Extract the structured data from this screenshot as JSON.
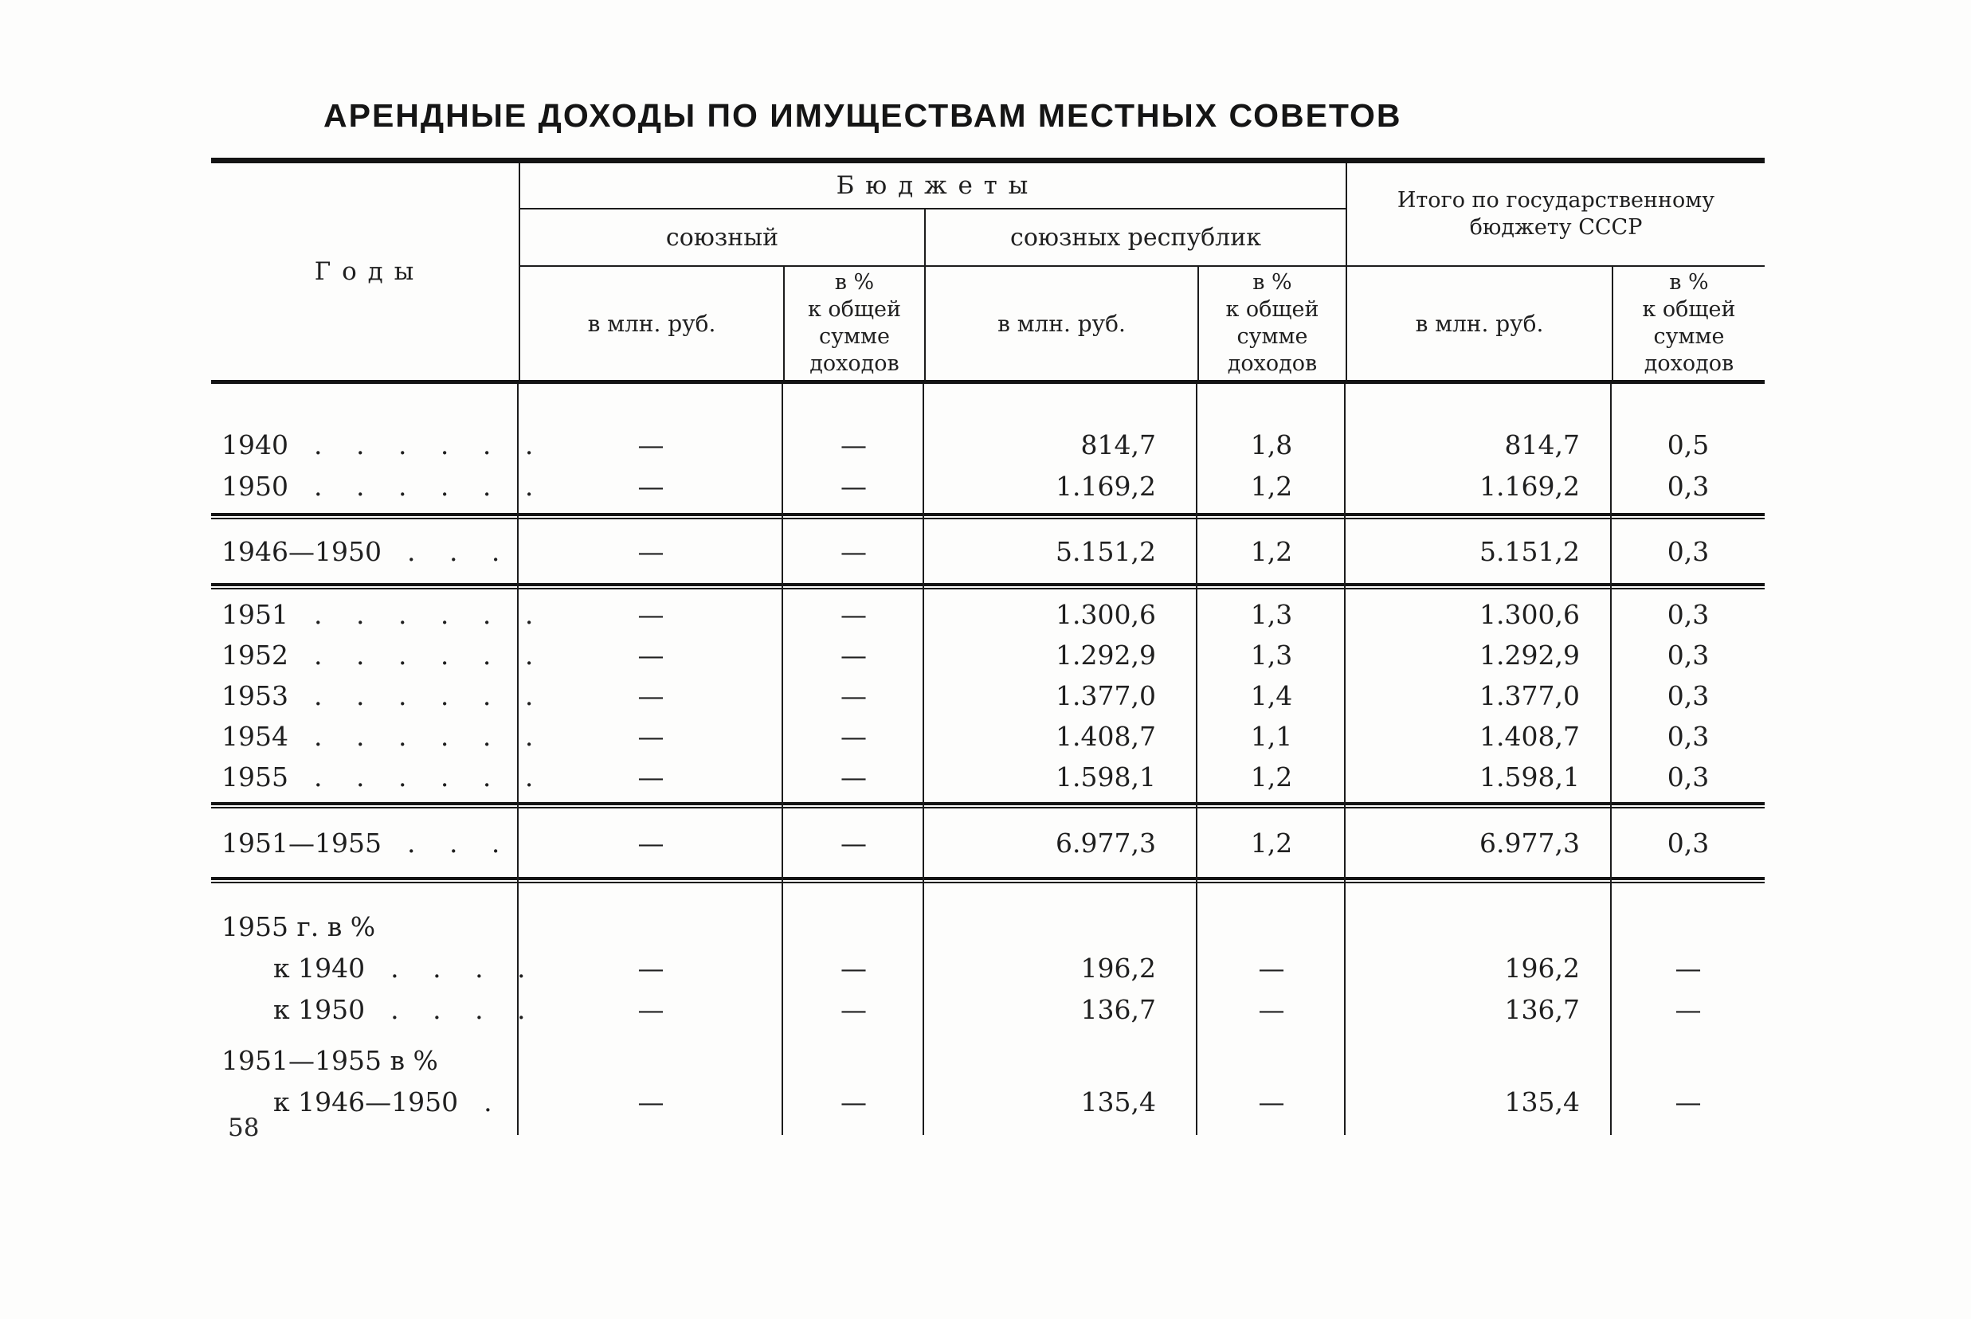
{
  "page": {
    "title": "АРЕНДНЫЕ ДОХОДЫ ПО ИМУЩЕСТВАМ МЕСТНЫХ СОВЕТОВ",
    "page_number": "58"
  },
  "table": {
    "header": {
      "years": "Г о д ы",
      "budgets": "Б ю д ж е т ы",
      "union": "союзный",
      "republics": "союзных республик",
      "total": "Итого по государственному\nбюджету СССР",
      "mln": "в млн. руб.",
      "pct": "в %\nк общей\nсумме\nдоходов"
    },
    "rows": [
      {
        "label": "1940",
        "dots": ". . . . . .",
        "cells": [
          "—",
          "—",
          "814,7",
          "1,8",
          "814,7",
          "0,5"
        ]
      },
      {
        "label": "1950",
        "dots": ". . . . . .",
        "cells": [
          "—",
          "—",
          "1.169,2",
          "1,2",
          "1.169,2",
          "0,3"
        ]
      },
      {
        "label": "1946—1950",
        "dots": ". . .",
        "cells": [
          "—",
          "—",
          "5.151,2",
          "1,2",
          "5.151,2",
          "0,3"
        ]
      },
      {
        "label": "1951",
        "dots": ". . . . . .",
        "cells": [
          "—",
          "—",
          "1.300,6",
          "1,3",
          "1.300,6",
          "0,3"
        ]
      },
      {
        "label": "1952",
        "dots": ". . . . . .",
        "cells": [
          "—",
          "—",
          "1.292,9",
          "1,3",
          "1.292,9",
          "0,3"
        ]
      },
      {
        "label": "1953",
        "dots": ". . . . . .",
        "cells": [
          "—",
          "—",
          "1.377,0",
          "1,4",
          "1.377,0",
          "0,3"
        ]
      },
      {
        "label": "1954",
        "dots": ". . . . . .",
        "cells": [
          "—",
          "—",
          "1.408,7",
          "1,1",
          "1.408,7",
          "0,3"
        ]
      },
      {
        "label": "1955",
        "dots": ". . . . . .",
        "cells": [
          "—",
          "—",
          "1.598,1",
          "1,2",
          "1.598,1",
          "0,3"
        ]
      },
      {
        "label": "1951—1955",
        "dots": ". . .",
        "cells": [
          "—",
          "—",
          "6.977,3",
          "1,2",
          "6.977,3",
          "0,3"
        ]
      },
      {
        "label": "1955 г. в %"
      },
      {
        "label": "к 1940",
        "dots": ". . . .",
        "cells": [
          "—",
          "—",
          "196,2",
          "—",
          "196,2",
          "—"
        ]
      },
      {
        "label": "к 1950",
        "dots": ". . . .",
        "cells": [
          "—",
          "—",
          "136,7",
          "—",
          "136,7",
          "—"
        ]
      },
      {
        "label": "1951—1955 в %"
      },
      {
        "label": "к 1946—1950",
        "dots": ".",
        "cells": [
          "—",
          "—",
          "135,4",
          "—",
          "135,4",
          "—"
        ]
      }
    ]
  }
}
